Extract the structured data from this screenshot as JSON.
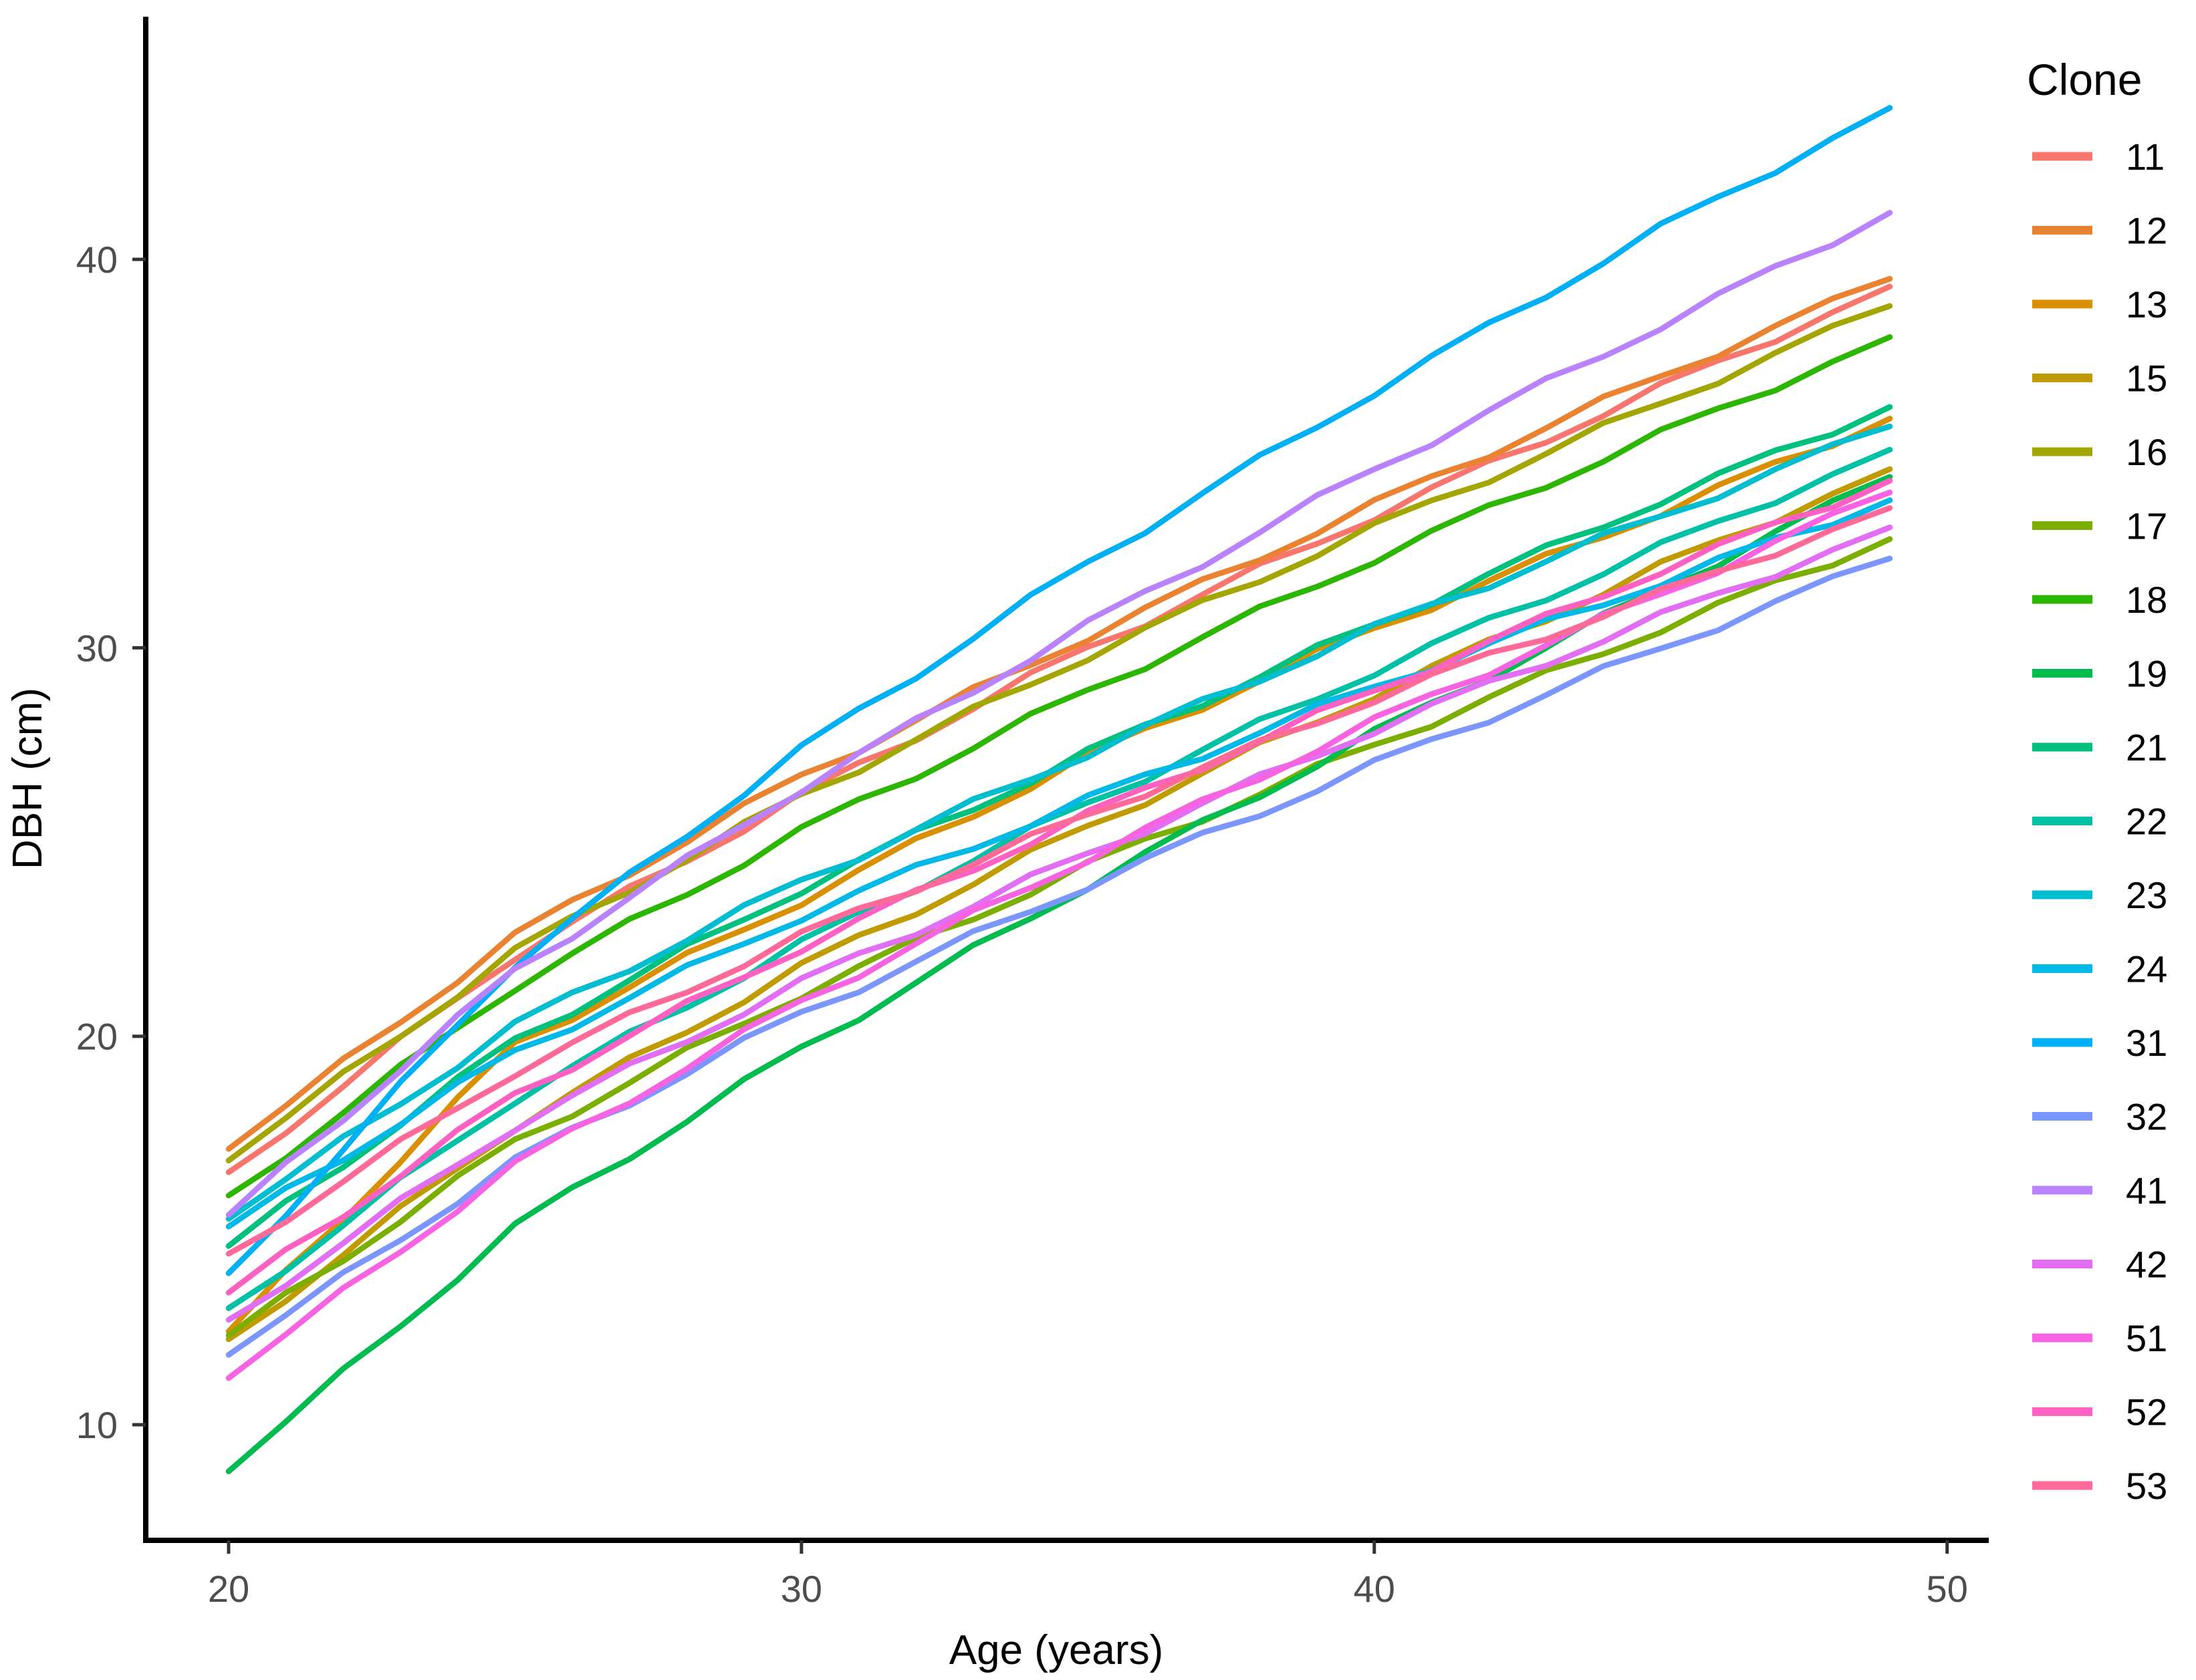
{
  "chart_data": {
    "type": "line",
    "title": "",
    "xlabel": "Age (years)",
    "ylabel": "DBH (cm)",
    "x_ticks": [
      20,
      30,
      40,
      50
    ],
    "y_ticks": [
      10,
      20,
      30,
      40
    ],
    "x_range": [
      18.5,
      50.7
    ],
    "y_range": [
      7.0,
      46.3
    ],
    "grid": "off",
    "legend_title": "Clone",
    "legend_position": "right",
    "axis_text_color": "#4D4D4D",
    "axis_line_color": "#000000",
    "anchor_ages": [
      20,
      25,
      30,
      35,
      40,
      45,
      49
    ],
    "series": [
      {
        "name": "11",
        "color": "#F8766D",
        "values": [
          16.5,
          22.1,
          26.2,
          30.0,
          33.4,
          36.7,
          39.3
        ]
      },
      {
        "name": "12",
        "color": "#EA8331",
        "values": [
          17.1,
          22.6,
          26.7,
          30.3,
          33.7,
          37.0,
          39.5
        ]
      },
      {
        "name": "13",
        "color": "#D89000",
        "values": [
          12.4,
          19.8,
          23.5,
          27.2,
          30.5,
          33.5,
          35.9
        ]
      },
      {
        "name": "15",
        "color": "#C09B00",
        "values": [
          12.2,
          17.7,
          21.8,
          25.4,
          28.8,
          32.1,
          34.6
        ]
      },
      {
        "name": "16",
        "color": "#A3A500",
        "values": [
          16.8,
          22.2,
          26.2,
          29.8,
          33.1,
          36.3,
          38.8
        ]
      },
      {
        "name": "17",
        "color": "#7CAE00",
        "values": [
          12.3,
          17.3,
          21.1,
          24.4,
          27.5,
          30.5,
          32.8
        ]
      },
      {
        "name": "18",
        "color": "#2CB600",
        "values": [
          15.9,
          21.3,
          25.3,
          28.9,
          32.3,
          35.5,
          38.0
        ]
      },
      {
        "name": "19",
        "color": "#00BB4E",
        "values": [
          8.8,
          15.1,
          19.7,
          23.9,
          27.8,
          31.5,
          34.4
        ]
      },
      {
        "name": "21",
        "color": "#00C07D",
        "values": [
          14.6,
          19.9,
          23.8,
          27.3,
          30.6,
          33.8,
          36.2
        ]
      },
      {
        "name": "22",
        "color": "#00C1A6",
        "values": [
          13.0,
          18.4,
          22.4,
          26.0,
          29.4,
          32.6,
          35.1
        ]
      },
      {
        "name": "23",
        "color": "#00BDD0",
        "values": [
          15.3,
          20.3,
          24.0,
          27.3,
          30.5,
          33.4,
          35.7
        ]
      },
      {
        "name": "24",
        "color": "#00B9E6",
        "values": [
          15.1,
          19.6,
          23.1,
          26.1,
          29.0,
          31.7,
          33.8
        ]
      },
      {
        "name": "31",
        "color": "#00B0F6",
        "values": [
          13.9,
          21.9,
          27.4,
          32.2,
          36.6,
          40.8,
          43.9
        ]
      },
      {
        "name": "32",
        "color": "#7C96FF",
        "values": [
          11.8,
          16.8,
          20.6,
          23.9,
          27.0,
          30.0,
          32.3
        ]
      },
      {
        "name": "41",
        "color": "#B983FF",
        "values": [
          15.4,
          21.7,
          26.4,
          30.6,
          34.6,
          38.3,
          41.2
        ]
      },
      {
        "name": "42",
        "color": "#E26EF3",
        "values": [
          12.7,
          17.7,
          21.4,
          24.7,
          27.9,
          30.8,
          33.1
        ]
      },
      {
        "name": "51",
        "color": "#F763E0",
        "values": [
          11.2,
          16.7,
          20.9,
          24.6,
          28.1,
          31.4,
          34.0
        ]
      },
      {
        "name": "52",
        "color": "#FF61C3",
        "values": [
          13.4,
          18.5,
          22.3,
          25.7,
          28.9,
          32.0,
          34.3
        ]
      },
      {
        "name": "53",
        "color": "#FF6A98",
        "values": [
          14.4,
          19.1,
          22.6,
          25.7,
          28.7,
          31.4,
          33.6
        ]
      }
    ]
  }
}
